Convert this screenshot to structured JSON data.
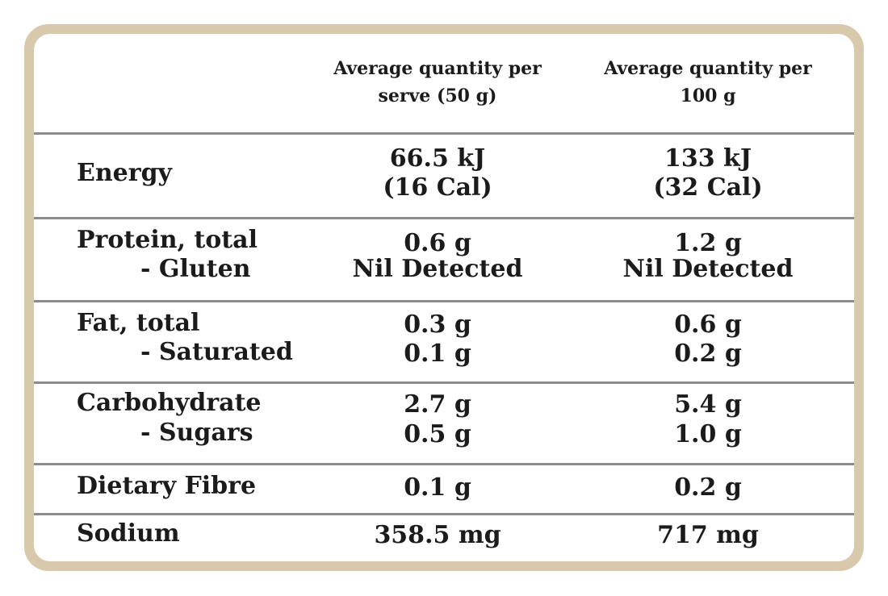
{
  "header": {
    "col_serve": "Average quantity per serve (50 g)",
    "col_100g": "Average quantity per 100 g",
    "col_serve_l1": "Average quantity per",
    "col_serve_l2": "serve (50 g)",
    "col_100g_l1": "Average quantity per",
    "col_100g_l2": "100 g"
  },
  "rows": [
    {
      "label": "Energy",
      "serve_l1": "66.5 kJ",
      "serve_l2": "(16 Cal)",
      "per100_l1": "133 kJ",
      "per100_l2": "(32 Cal)"
    },
    {
      "label": "Protein, total",
      "sublabel": "- Gluten",
      "serve_l1": "0.6 g",
      "serve_l2": "Nil Detected",
      "per100_l1": "1.2 g",
      "per100_l2": "Nil Detected"
    },
    {
      "label": "Fat, total",
      "sublabel": "- Saturated",
      "serve_l1": "0.3 g",
      "serve_l2": "0.1 g",
      "per100_l1": "0.6 g",
      "per100_l2": "0.2 g"
    },
    {
      "label": "Carbohydrate",
      "sublabel": "- Sugars",
      "serve_l1": "2.7 g",
      "serve_l2": "0.5 g",
      "per100_l1": "5.4 g",
      "per100_l2": "1.0 g"
    },
    {
      "label": "Dietary Fibre",
      "serve_l1": "0.1 g",
      "per100_l1": "0.2 g"
    },
    {
      "label": "Sodium",
      "serve_l1": "358.5 mg",
      "per100_l1": "717 mg"
    }
  ]
}
